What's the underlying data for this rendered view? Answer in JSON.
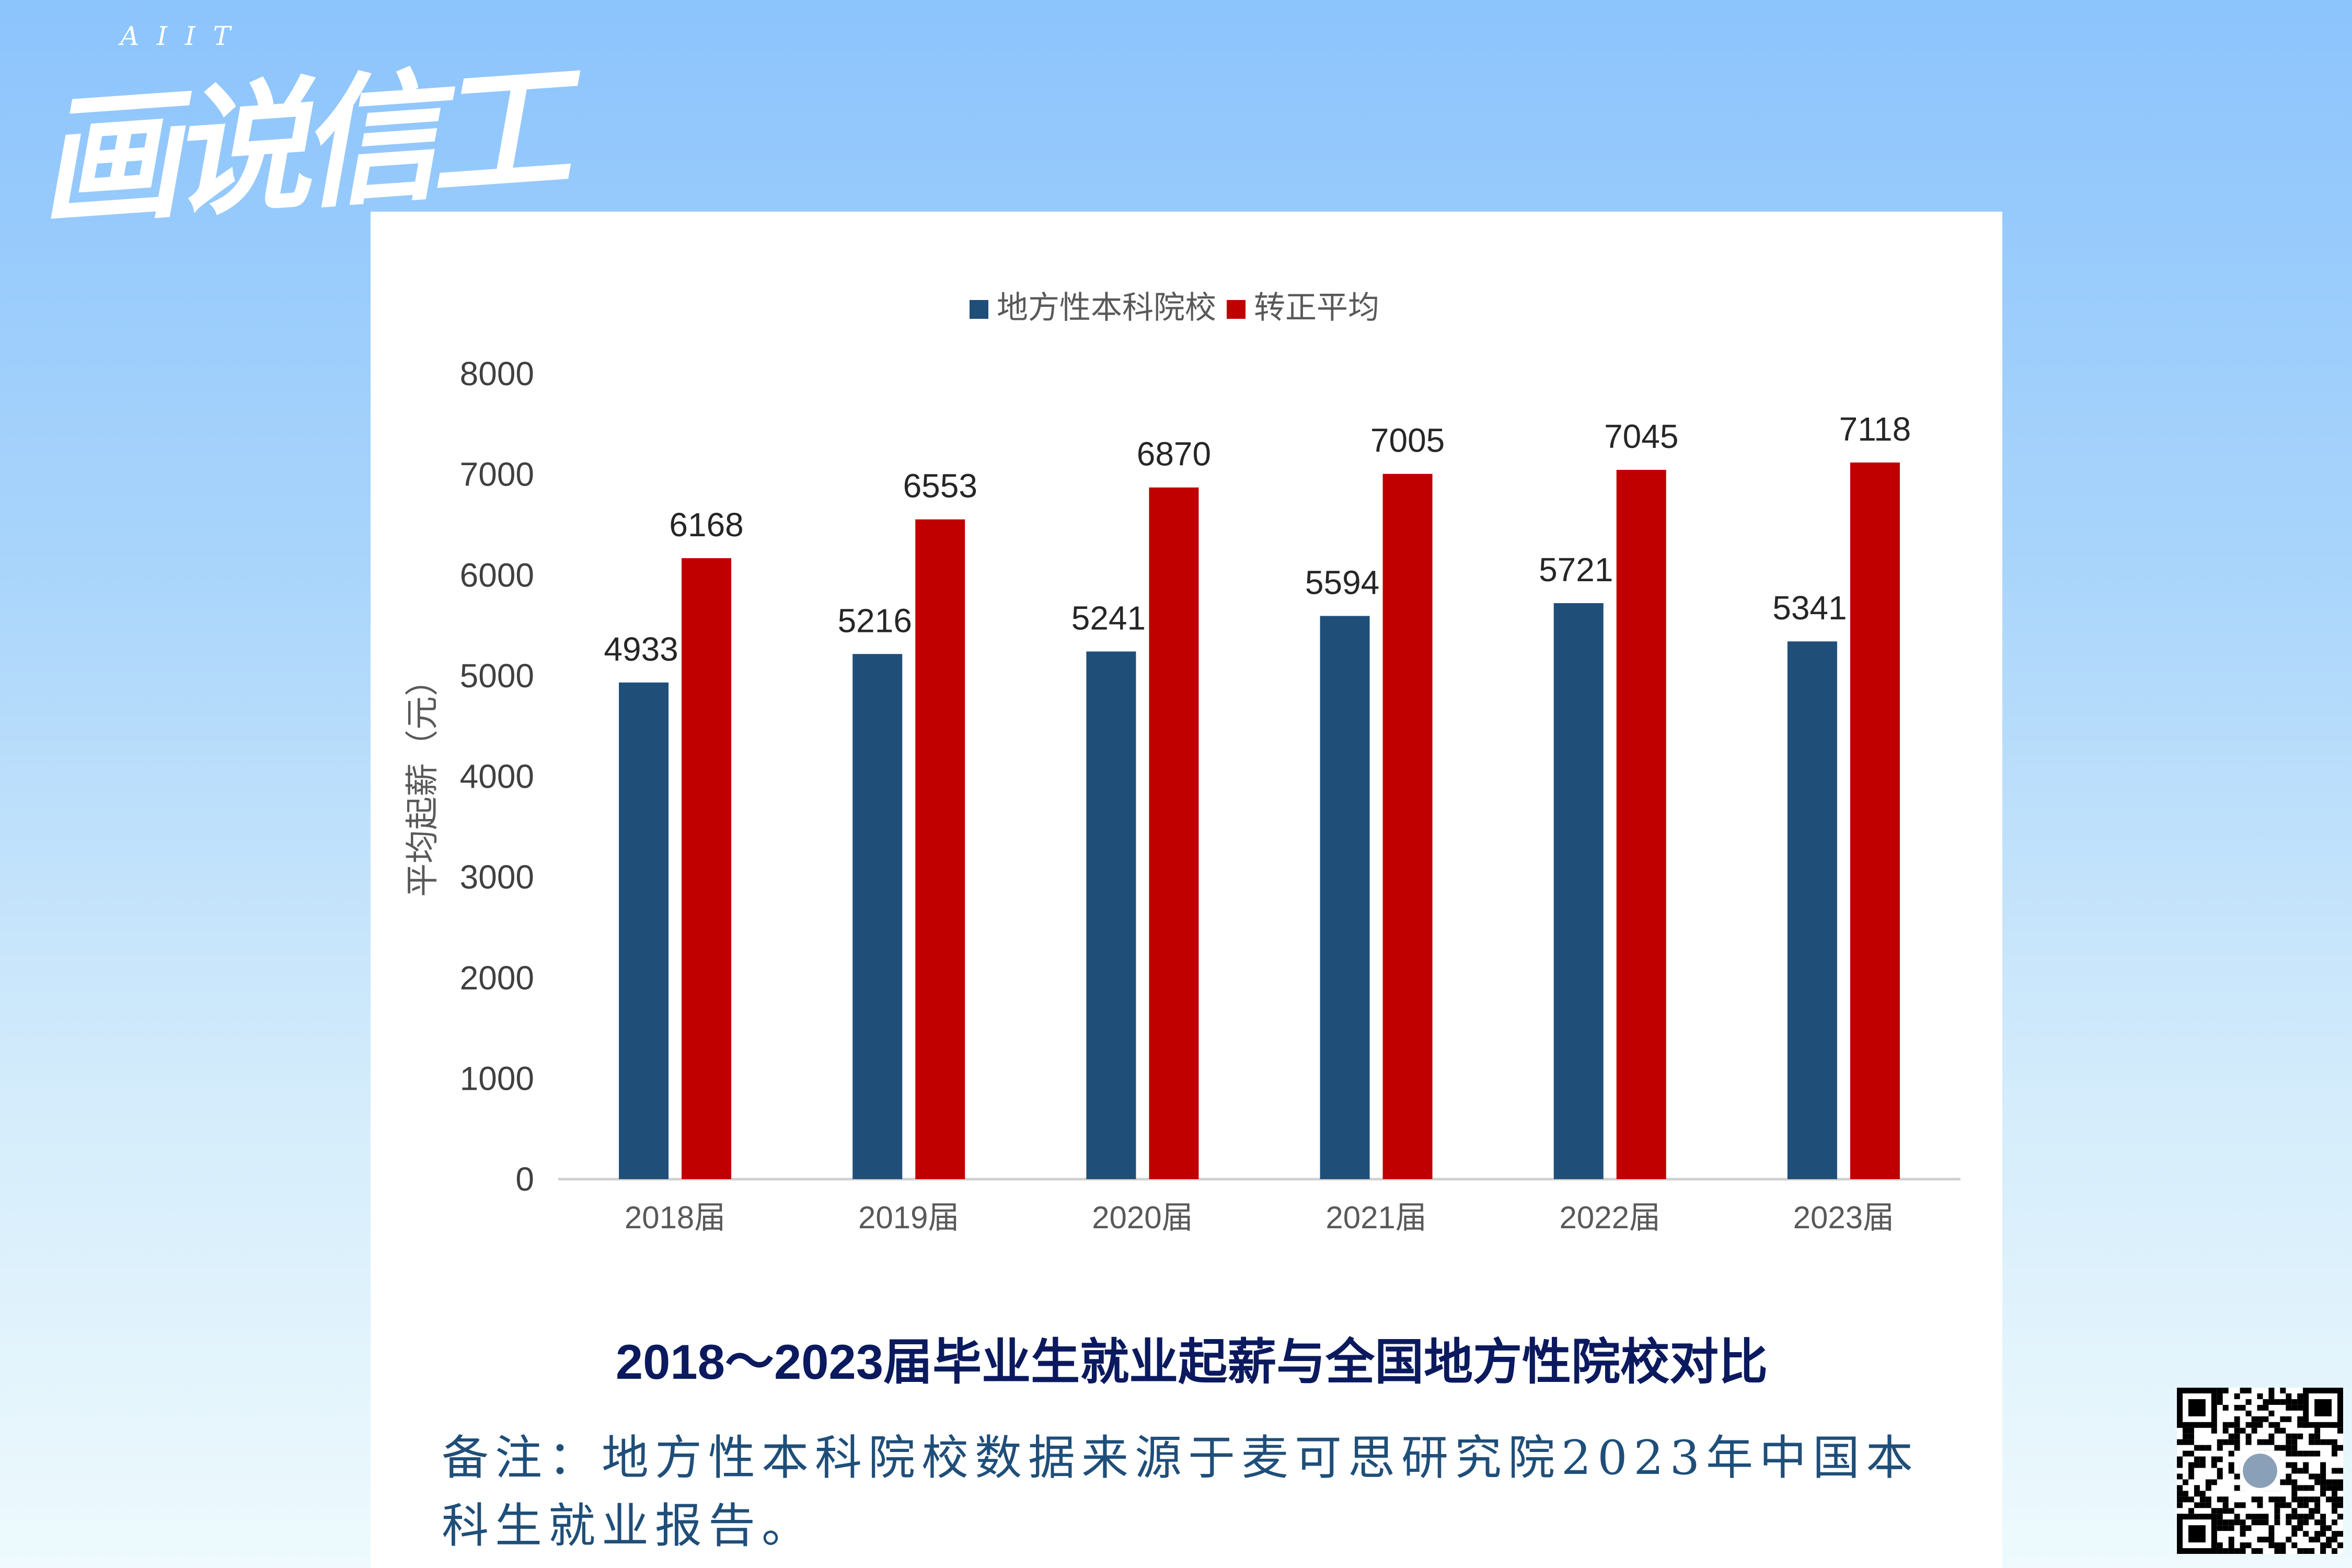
{
  "logo": {
    "sub": "AIIT",
    "main": "画说信工"
  },
  "chart_data": {
    "type": "bar",
    "title": "2018～2023届毕业生就业起薪与全国地方性院校对比",
    "categories": [
      "2018届",
      "2019届",
      "2020届",
      "2021届",
      "2022届",
      "2023届"
    ],
    "series": [
      {
        "name": "地方性本科院校",
        "color": "#1f4e79",
        "values": [
          4933,
          5216,
          5241,
          5594,
          5721,
          5341
        ]
      },
      {
        "name": "转正平均",
        "color": "#c00000",
        "values": [
          6168,
          6553,
          6870,
          7005,
          7045,
          7118
        ]
      }
    ],
    "xlabel": "",
    "ylabel": "平均起薪（元）",
    "ylim": [
      0,
      8000
    ],
    "yticks": [
      0,
      1000,
      2000,
      3000,
      4000,
      5000,
      6000,
      7000,
      8000
    ],
    "legend": "top-center",
    "grid": false
  },
  "note": "备注：地方性本科院校数据来源于麦可思研究院2023年中国本科生就业报告。"
}
